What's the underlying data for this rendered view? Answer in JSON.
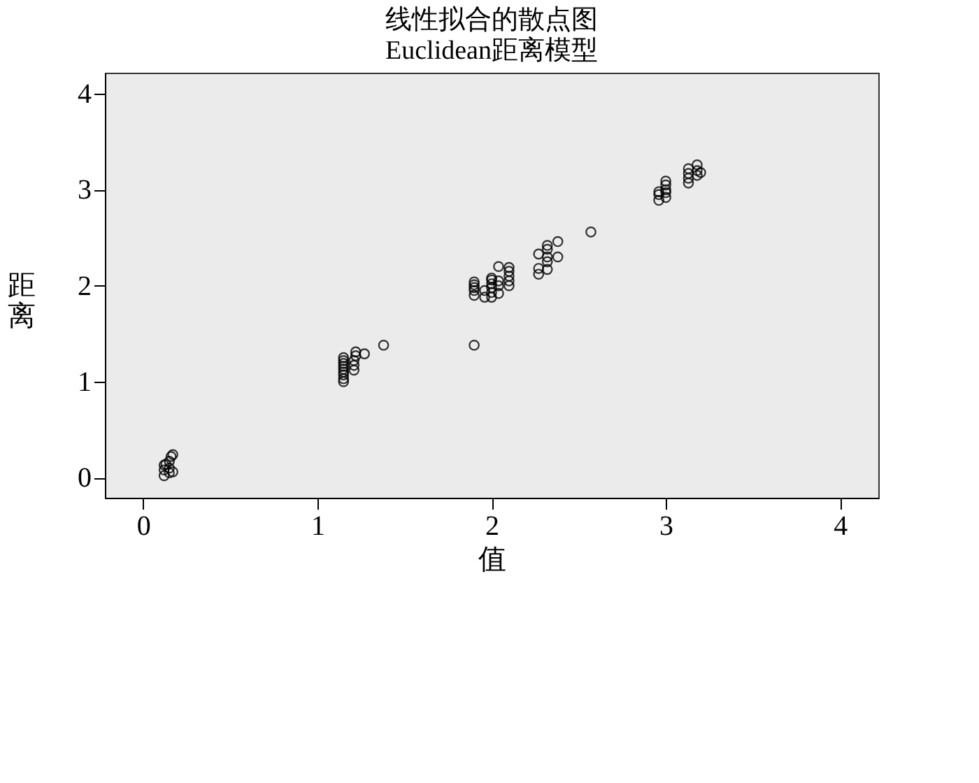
{
  "chart_data": {
    "type": "scatter",
    "title": "线性拟合的散点图",
    "subtitle": "Euclidean距离模型",
    "xlabel": "值",
    "ylabel": "距离",
    "x": [
      0.12,
      0.12,
      0.12,
      0.15,
      0.15,
      0.15,
      0.16,
      0.17,
      0.17,
      0.13,
      1.15,
      1.15,
      1.15,
      1.15,
      1.15,
      1.15,
      1.15,
      1.15,
      1.15,
      1.21,
      1.21,
      1.21,
      1.22,
      1.22,
      1.27,
      1.38,
      1.9,
      1.9,
      1.9,
      1.9,
      1.9,
      1.9,
      1.96,
      1.96,
      2.0,
      2.0,
      2.0,
      2.0,
      2.0,
      2.0,
      2.04,
      2.04,
      2.04,
      2.04,
      2.1,
      2.1,
      2.1,
      2.1,
      2.1,
      2.27,
      2.27,
      2.27,
      2.32,
      2.32,
      2.32,
      2.32,
      2.32,
      2.38,
      2.38,
      2.57,
      2.96,
      2.96,
      2.96,
      3.0,
      3.0,
      3.0,
      3.0,
      3.0,
      3.13,
      3.13,
      3.13,
      3.13,
      3.18,
      3.18,
      3.18,
      3.2
    ],
    "series": [
      {
        "color": "#000000",
        "values": [
          0.02,
          0.08,
          0.13,
          0.05,
          0.1,
          0.17,
          0.22,
          0.24,
          0.06,
          0.14,
          1.0,
          1.03,
          1.07,
          1.1,
          1.13,
          1.16,
          1.19,
          1.22,
          1.25,
          1.12,
          1.17,
          1.22,
          1.27,
          1.31,
          1.29,
          1.38,
          1.38,
          1.9,
          1.95,
          1.98,
          2.01,
          2.04,
          1.88,
          1.95,
          1.88,
          1.93,
          1.98,
          2.02,
          2.06,
          2.08,
          1.92,
          2.0,
          2.05,
          2.2,
          2.0,
          2.05,
          2.1,
          2.15,
          2.19,
          2.12,
          2.18,
          2.33,
          2.17,
          2.25,
          2.3,
          2.38,
          2.42,
          2.3,
          2.46,
          2.56,
          2.89,
          2.95,
          2.98,
          2.92,
          2.97,
          3.0,
          3.05,
          3.09,
          3.07,
          3.12,
          3.17,
          3.22,
          3.15,
          3.2,
          3.26,
          3.18
        ]
      }
    ],
    "xlim": [
      -0.22,
      4.22
    ],
    "ylim": [
      -0.21,
      4.22
    ],
    "xticks": [
      0,
      1,
      2,
      3,
      4
    ],
    "yticks": [
      0,
      1,
      2,
      3,
      4
    ],
    "grid": false,
    "legend": false,
    "marker": "circle"
  }
}
